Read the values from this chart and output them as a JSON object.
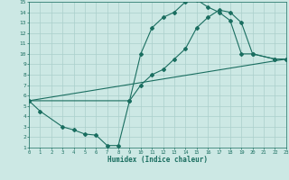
{
  "xlabel": "Humidex (Indice chaleur)",
  "bg_color": "#cce8e4",
  "grid_color": "#aacfcb",
  "line_color": "#1a6e60",
  "xlim": [
    0,
    23
  ],
  "ylim": [
    1,
    15
  ],
  "xticks": [
    0,
    1,
    2,
    3,
    4,
    5,
    6,
    7,
    8,
    9,
    10,
    11,
    12,
    13,
    14,
    15,
    16,
    17,
    18,
    19,
    20,
    21,
    22,
    23
  ],
  "yticks": [
    1,
    2,
    3,
    4,
    5,
    6,
    7,
    8,
    9,
    10,
    11,
    12,
    13,
    14,
    15
  ],
  "curve1_x": [
    0,
    1,
    3,
    4,
    5,
    6,
    7,
    8,
    9,
    10,
    11,
    12,
    13,
    14,
    15,
    16,
    17,
    18,
    19,
    20,
    22,
    23
  ],
  "curve1_y": [
    5.5,
    4.5,
    3.0,
    2.7,
    2.3,
    2.2,
    1.2,
    1.2,
    5.5,
    10.0,
    12.5,
    13.5,
    14.0,
    15.0,
    15.2,
    14.5,
    14.0,
    13.2,
    10.0,
    10.0,
    9.5,
    9.5
  ],
  "curve2_x": [
    0,
    9,
    10,
    11,
    12,
    13,
    14,
    15,
    16,
    17,
    18,
    19,
    20,
    22,
    23
  ],
  "curve2_y": [
    5.5,
    5.5,
    7.0,
    8.0,
    8.5,
    9.5,
    10.5,
    12.5,
    13.5,
    14.2,
    14.0,
    13.0,
    10.0,
    9.5,
    9.5
  ],
  "curve3_x": [
    0,
    23
  ],
  "curve3_y": [
    5.5,
    9.5
  ]
}
